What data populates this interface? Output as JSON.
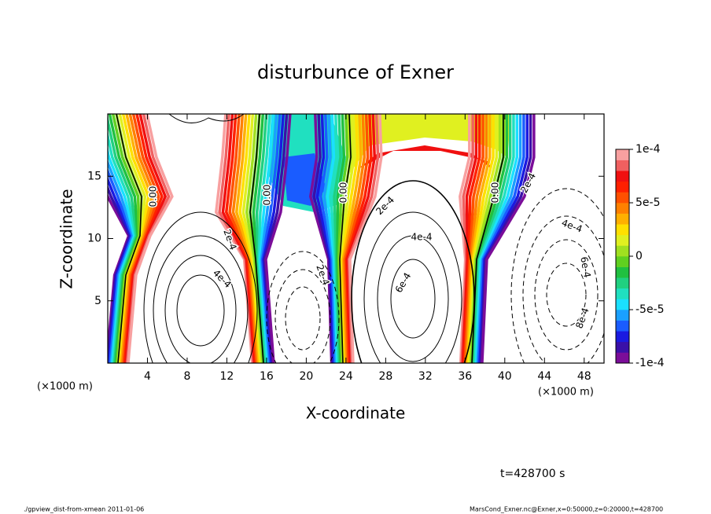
{
  "chart_data": {
    "type": "contour",
    "title": "disturbunce of Exner",
    "xlabel": "X-coordinate",
    "ylabel": "Z-coordinate",
    "x_unit_left": "(×1000 m)",
    "x_unit_right": "(×1000 m)",
    "xlim": [
      0,
      50
    ],
    "xticks": [
      4,
      8,
      12,
      16,
      20,
      24,
      28,
      32,
      36,
      40,
      44,
      48
    ],
    "ylim": [
      0,
      20
    ],
    "yticks": [
      5,
      10,
      15
    ],
    "colorbar": {
      "clim": [
        -0.0001,
        0.0001
      ],
      "ticks": [
        {
          "value": 0.0001,
          "label": "1e-4"
        },
        {
          "value": 5e-05,
          "label": "5e-5"
        },
        0,
        {
          "value": -5e-05,
          "label": "-5e-5"
        },
        {
          "value": -0.0001,
          "label": "-1e-4"
        }
      ],
      "colors": [
        "#7b0d99",
        "#3a10a8",
        "#1a1ae0",
        "#1a5cff",
        "#1aa0ff",
        "#1ae0ff",
        "#20e0c0",
        "#20d080",
        "#20c040",
        "#60d020",
        "#a0e020",
        "#e0f020",
        "#ffe000",
        "#ffb000",
        "#ff8000",
        "#ff5000",
        "#ff2000",
        "#f01010",
        "#f06060",
        "#f8a0a0"
      ]
    },
    "contour_labels": [
      "0.00",
      "0.00",
      "0.00",
      "0.00",
      "2e-4",
      "2e-4",
      "2e-4",
      "2e-4",
      "4e-4",
      "4e-4",
      "4e-4",
      "6e-4",
      "6e-4",
      "8e-4"
    ],
    "time_label": "t=428700 s",
    "footer_left": "./gpview_dist-from-xmean  2011-01-06",
    "footer_right": "MarsCond_Exner.nc@Exner,x=0:50000,z=0:20000,t=428700"
  }
}
